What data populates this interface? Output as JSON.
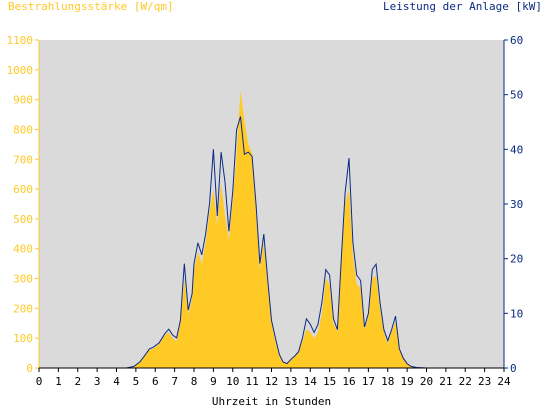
{
  "header": {
    "left_title": "Bestrahlungsstärke [W/qm]",
    "right_title": "Leistung der Anlage [kW]"
  },
  "colors": {
    "irradiance": "#FFC926",
    "power": "#0B2A83",
    "plot_background": "#DADADA",
    "left_axis_text": "#FFC926",
    "right_axis_text": "#0B2A83"
  },
  "chart_data": {
    "type": "area",
    "title": "",
    "xlabel": "Uhrzeit in Stunden",
    "xlim": [
      0,
      24
    ],
    "x_ticks": [
      "0",
      "1",
      "2",
      "3",
      "4",
      "5",
      "6",
      "7",
      "8",
      "9",
      "10",
      "11",
      "12",
      "13",
      "14",
      "15",
      "16",
      "17",
      "18",
      "19",
      "20",
      "21",
      "22",
      "23",
      "24"
    ],
    "y_left": {
      "label": "Bestrahlungsstärke [W/qm]",
      "lim": [
        0,
        1100
      ],
      "ticks": [
        "0",
        "100",
        "200",
        "300",
        "400",
        "500",
        "600",
        "700",
        "800",
        "900",
        "1000",
        "1100"
      ]
    },
    "y_right": {
      "label": "Leistung der Anlage [kW]",
      "lim": [
        0,
        60
      ],
      "ticks": [
        "0",
        "10",
        "20",
        "30",
        "40",
        "50",
        "60"
      ]
    },
    "grid": false,
    "series": [
      {
        "name": "Bestrahlungsstärke [W/qm]",
        "axis": "left",
        "style": "filled-area",
        "x": [
          0,
          4.5,
          4.9,
          5.2,
          5.5,
          5.7,
          5.9,
          6.2,
          6.5,
          6.7,
          6.9,
          7.1,
          7.3,
          7.5,
          7.7,
          7.9,
          8.0,
          8.2,
          8.4,
          8.6,
          8.8,
          9.0,
          9.2,
          9.4,
          9.6,
          9.8,
          10.0,
          10.2,
          10.4,
          10.6,
          10.8,
          11.0,
          11.2,
          11.4,
          11.6,
          11.8,
          12.0,
          12.2,
          12.4,
          12.6,
          12.8,
          13.0,
          13.2,
          13.4,
          13.6,
          13.8,
          14.0,
          14.2,
          14.4,
          14.6,
          14.8,
          15.0,
          15.2,
          15.4,
          15.6,
          15.8,
          16.0,
          16.2,
          16.4,
          16.6,
          16.8,
          17.0,
          17.2,
          17.4,
          17.6,
          17.8,
          18.0,
          18.2,
          18.4,
          18.6,
          18.8,
          19.0,
          19.2,
          19.5,
          20,
          24
        ],
        "y": [
          0,
          0,
          5,
          20,
          45,
          60,
          65,
          80,
          110,
          120,
          100,
          90,
          150,
          300,
          180,
          230,
          330,
          390,
          350,
          420,
          520,
          600,
          480,
          620,
          510,
          430,
          560,
          720,
          930,
          830,
          750,
          720,
          520,
          330,
          420,
          280,
          150,
          90,
          40,
          20,
          15,
          30,
          40,
          55,
          90,
          130,
          120,
          100,
          120,
          180,
          300,
          280,
          150,
          120,
          350,
          550,
          600,
          380,
          280,
          270,
          130,
          170,
          300,
          310,
          200,
          120,
          80,
          120,
          155,
          60,
          30,
          15,
          5,
          2,
          0,
          0
        ]
      },
      {
        "name": "Leistung der Anlage [kW]",
        "axis": "right",
        "style": "line",
        "x": [
          0,
          4.5,
          4.9,
          5.2,
          5.5,
          5.7,
          5.9,
          6.2,
          6.5,
          6.7,
          6.9,
          7.1,
          7.3,
          7.5,
          7.7,
          7.9,
          8.0,
          8.2,
          8.4,
          8.6,
          8.8,
          9.0,
          9.2,
          9.4,
          9.6,
          9.8,
          10.0,
          10.2,
          10.4,
          10.6,
          10.8,
          11.0,
          11.2,
          11.4,
          11.6,
          11.8,
          12.0,
          12.2,
          12.4,
          12.6,
          12.8,
          13.0,
          13.2,
          13.4,
          13.6,
          13.8,
          14.0,
          14.2,
          14.4,
          14.6,
          14.8,
          15.0,
          15.2,
          15.4,
          15.6,
          15.8,
          16.0,
          16.2,
          16.4,
          16.6,
          16.8,
          17.0,
          17.2,
          17.4,
          17.6,
          17.8,
          18.0,
          18.2,
          18.4,
          18.6,
          18.8,
          19.0,
          19.2,
          19.5,
          20,
          24
        ],
        "y": [
          0,
          0,
          0.3,
          1.1,
          2.5,
          3.5,
          3.8,
          4.6,
          6.3,
          7.1,
          6.0,
          5.5,
          8.7,
          19.1,
          10.6,
          13.6,
          19.1,
          22.9,
          20.7,
          24.5,
          30.0,
          40.0,
          27.8,
          39.5,
          34.0,
          25.0,
          32.4,
          43.6,
          46.0,
          39.1,
          39.5,
          38.7,
          30.0,
          19.1,
          24.5,
          16.4,
          8.7,
          5.5,
          2.5,
          1.1,
          0.8,
          1.6,
          2.2,
          3.0,
          5.5,
          9.0,
          8.0,
          6.5,
          8.0,
          12.0,
          18.0,
          17.0,
          9.0,
          7.0,
          20.0,
          32.0,
          38.4,
          23.0,
          17.0,
          16.0,
          7.5,
          10.0,
          18.0,
          19.0,
          12.0,
          7.0,
          5.0,
          7.0,
          9.5,
          3.5,
          1.8,
          0.8,
          0.3,
          0.1,
          0,
          0
        ]
      }
    ]
  }
}
